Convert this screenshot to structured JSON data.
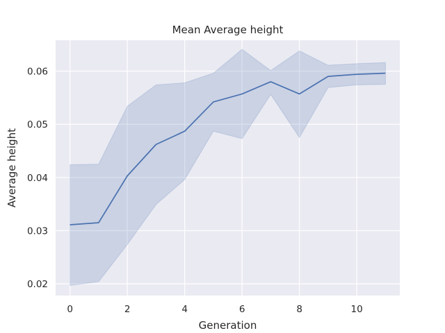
{
  "chart_data": {
    "type": "line",
    "title": "Mean Average height",
    "xlabel": "Generation",
    "ylabel": "Average height",
    "xlim": [
      -0.5,
      11.5
    ],
    "ylim": [
      0.0178,
      0.0658
    ],
    "xticks": [
      0,
      2,
      4,
      6,
      8,
      10
    ],
    "yticks": [
      0.02,
      0.03,
      0.04,
      0.05,
      0.06
    ],
    "ytick_labels": [
      "0.02",
      "0.03",
      "0.04",
      "0.05",
      "0.06"
    ],
    "grid": true,
    "legend": false,
    "series": [
      {
        "x": [
          0,
          1,
          2,
          3,
          4,
          5,
          6,
          7,
          8,
          9,
          10,
          11
        ],
        "values": [
          0.0311,
          0.0315,
          0.0403,
          0.0462,
          0.0487,
          0.0542,
          0.0557,
          0.058,
          0.0557,
          0.059,
          0.0594,
          0.0596
        ],
        "lower": [
          0.0197,
          0.0204,
          0.0274,
          0.0349,
          0.0396,
          0.0487,
          0.0473,
          0.0556,
          0.0475,
          0.0569,
          0.0574,
          0.0575
        ],
        "upper": [
          0.0424,
          0.0425,
          0.0534,
          0.0574,
          0.0578,
          0.0596,
          0.0641,
          0.0601,
          0.0638,
          0.0611,
          0.0614,
          0.0616
        ],
        "color": "#4c72b0",
        "band_color": "#4c72b0"
      }
    ],
    "background": "#eaeaf2",
    "grid_color": "#ffffff"
  }
}
